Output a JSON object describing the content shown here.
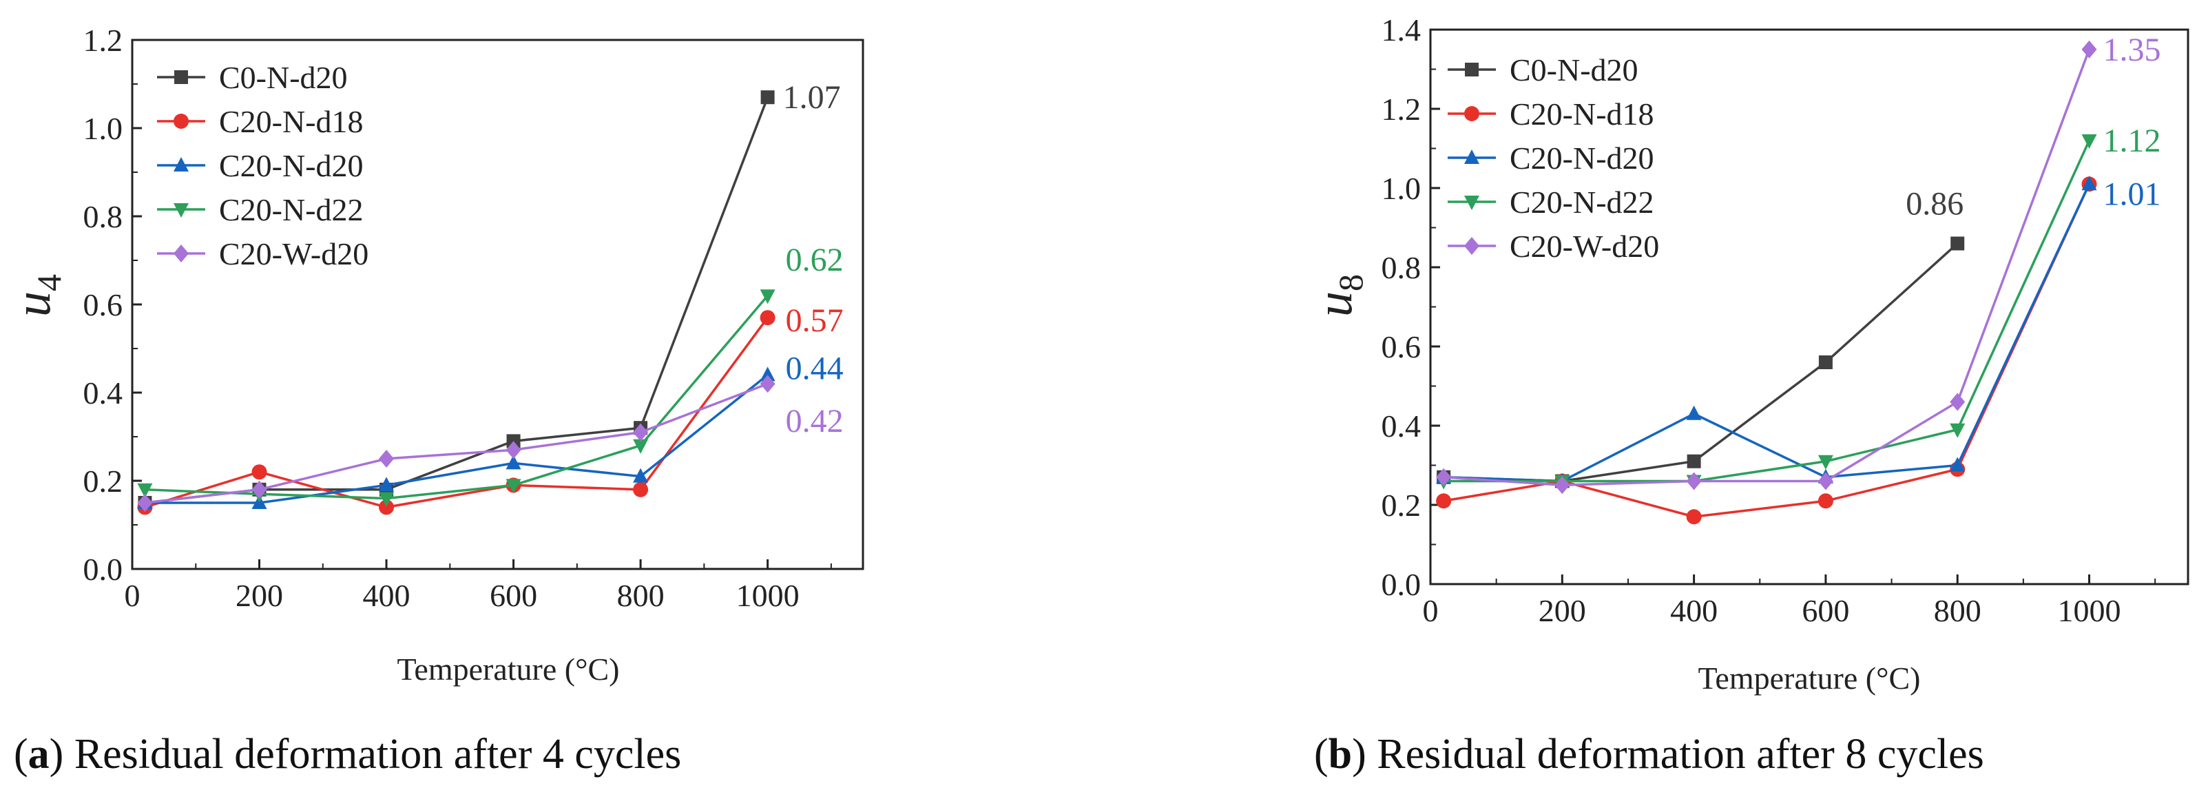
{
  "chart_data": [
    {
      "type": "line",
      "caption_letter": "a",
      "caption_text": "Residual deformation after 4 cycles",
      "xlabel": "Temperature (°C)",
      "ylabel": "u",
      "ylabel_sub": "4",
      "xlim": [
        0,
        1150
      ],
      "ylim": [
        0,
        1.2
      ],
      "xticks": [
        0,
        200,
        400,
        600,
        800,
        1000
      ],
      "yticks": [
        0.0,
        0.2,
        0.4,
        0.6,
        0.8,
        1.0,
        1.2
      ],
      "x": [
        20,
        200,
        400,
        600,
        800,
        1000
      ],
      "series": [
        {
          "name": "C0-N-d20",
          "color": "#404040",
          "marker": "square",
          "values": [
            0.15,
            0.18,
            0.18,
            0.29,
            0.32,
            1.07
          ],
          "end_label": "1.07"
        },
        {
          "name": "C20-N-d18",
          "color": "#e8302a",
          "marker": "circle",
          "values": [
            0.14,
            0.22,
            0.14,
            0.19,
            0.18,
            0.57
          ],
          "end_label": "0.57"
        },
        {
          "name": "C20-N-d20",
          "color": "#1565c0",
          "marker": "triangle",
          "values": [
            0.15,
            0.15,
            0.19,
            0.24,
            0.21,
            0.44
          ],
          "end_label": "0.44"
        },
        {
          "name": "C20-N-d22",
          "color": "#2ca05a",
          "marker": "tri-down",
          "values": [
            0.18,
            0.17,
            0.16,
            0.19,
            0.28,
            0.62
          ],
          "end_label": "0.62"
        },
        {
          "name": "C20-W-d20",
          "color": "#a872d8",
          "marker": "diamond",
          "values": [
            0.15,
            0.18,
            0.25,
            0.27,
            0.31,
            0.42
          ],
          "end_label": "0.42"
        }
      ]
    },
    {
      "type": "line",
      "caption_letter": "b",
      "caption_text": "Residual deformation after 8 cycles",
      "xlabel": "Temperature (°C)",
      "ylabel": "u",
      "ylabel_sub": "8",
      "xlim": [
        0,
        1150
      ],
      "ylim": [
        0,
        1.4
      ],
      "xticks": [
        0,
        200,
        400,
        600,
        800,
        1000
      ],
      "yticks": [
        0.0,
        0.2,
        0.4,
        0.6,
        0.8,
        1.0,
        1.2,
        1.4
      ],
      "x": [
        20,
        200,
        400,
        600,
        800,
        1000
      ],
      "series": [
        {
          "name": "C0-N-d20",
          "color": "#404040",
          "marker": "square",
          "x": [
            20,
            200,
            400,
            600,
            800
          ],
          "values": [
            0.27,
            0.26,
            0.31,
            0.56,
            0.86
          ],
          "end_label": "0.86"
        },
        {
          "name": "C20-N-d18",
          "color": "#e8302a",
          "marker": "circle",
          "values": [
            0.21,
            0.26,
            0.17,
            0.21,
            0.29,
            1.01
          ],
          "end_label": ""
        },
        {
          "name": "C20-N-d20",
          "color": "#1565c0",
          "marker": "triangle",
          "values": [
            0.27,
            0.26,
            0.43,
            0.27,
            0.3,
            1.01
          ],
          "end_label": "1.01"
        },
        {
          "name": "C20-N-d22",
          "color": "#2ca05a",
          "marker": "tri-down",
          "values": [
            0.26,
            0.26,
            0.26,
            0.31,
            0.39,
            1.12
          ],
          "end_label": "1.12"
        },
        {
          "name": "C20-W-d20",
          "color": "#a872d8",
          "marker": "diamond",
          "values": [
            0.27,
            0.25,
            0.26,
            0.26,
            0.46,
            1.35
          ],
          "end_label": "1.35"
        }
      ]
    }
  ]
}
